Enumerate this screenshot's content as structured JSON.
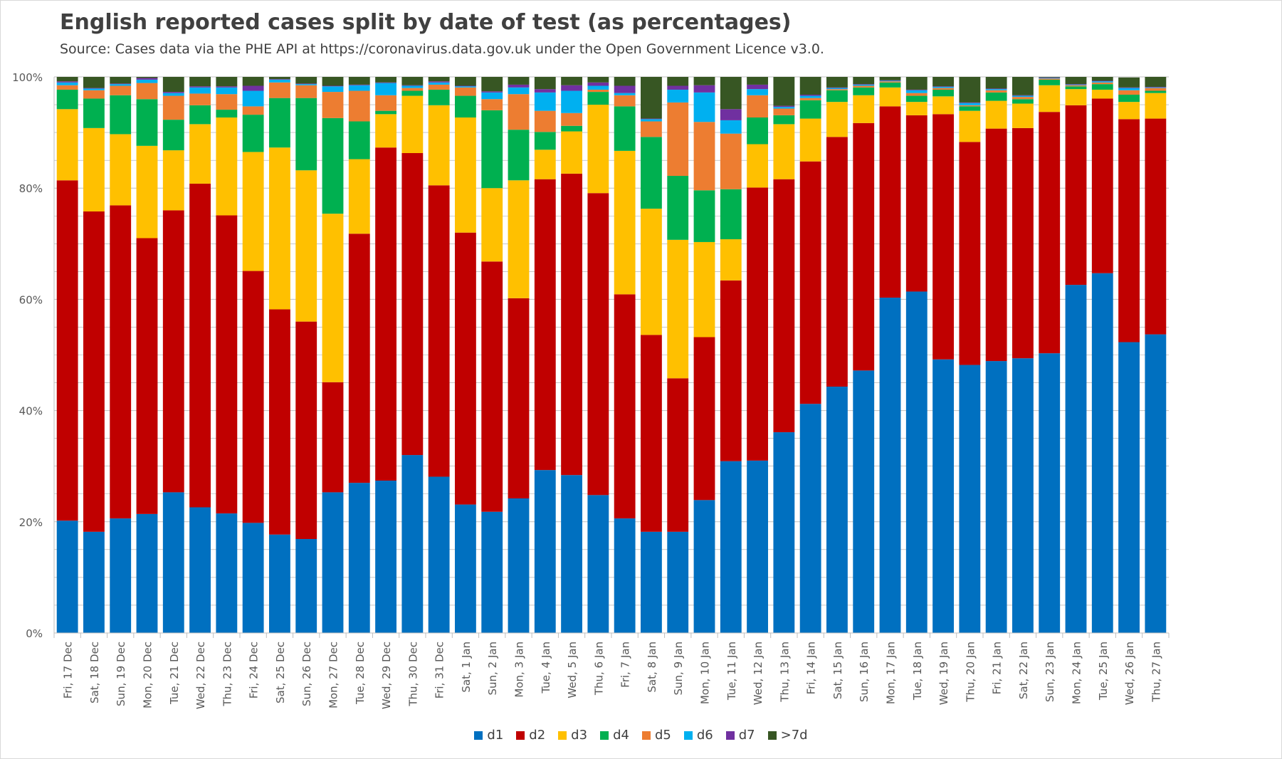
{
  "title": "English reported cases split by date of test (as percentages)",
  "subtitle": "Source: Cases data via the PHE API at https://coronavirus.data.gov.uk under the Open Government Licence v3.0.",
  "colors": {
    "d1": "#0070c0",
    "d2": "#c00000",
    "d3": "#ffc000",
    "d4": "#00b050",
    "d5": "#ed7d31",
    "d6": "#00b0f0",
    "d7": "#7030a0",
    ">7d": "#375623"
  },
  "chart_data": {
    "type": "bar",
    "stacked": true,
    "grid": true,
    "legend": "bottom",
    "ylim": [
      0,
      100
    ],
    "yticks": [
      "0%",
      "20%",
      "40%",
      "60%",
      "80%",
      "100%"
    ],
    "categories": [
      "Fri, 17 Dec",
      "Sat, 18 Dec",
      "Sun, 19 Dec",
      "Mon, 20 Dec",
      "Tue, 21 Dec",
      "Wed, 22 Dec",
      "Thu, 23 Dec",
      "Fri, 24 Dec",
      "Sat, 25 Dec",
      "Sun, 26 Dec",
      "Mon, 27 Dec",
      "Tue, 28 Dec",
      "Wed, 29 Dec",
      "Thu, 30 Dec",
      "Fri, 31 Dec",
      "Sat, 1 Jan",
      "Sun, 2 Jan",
      "Mon, 3 Jan",
      "Tue, 4 Jan",
      "Wed, 5 Jan",
      "Thu, 6 Jan",
      "Fri, 7 Jan",
      "Sat, 8 Jan",
      "Sun, 9 Jan",
      "Mon, 10 Jan",
      "Tue, 11 Jan",
      "Wed, 12 Jan",
      "Thu, 13 Jan",
      "Fri, 14 Jan",
      "Sat, 15 Jan",
      "Sun, 16 Jan",
      "Mon, 17 Jan",
      "Tue, 18 Jan",
      "Wed, 19 Jan",
      "Thu, 20 Jan",
      "Fri, 21 Jan",
      "Sat, 22 Jan",
      "Sun, 23 Jan",
      "Mon, 24 Jan",
      "Tue, 25 Jan",
      "Wed, 26 Jan",
      "Thu, 27 Jan"
    ],
    "series": [
      {
        "name": "d1",
        "values": [
          20.2,
          18.2,
          20.6,
          21.4,
          25.3,
          22.6,
          21.5,
          19.8,
          17.7,
          16.9,
          25.3,
          27.0,
          27.4,
          32.0,
          28.1,
          23.1,
          21.8,
          24.2,
          29.3,
          28.4,
          24.8,
          20.6,
          18.2,
          18.2,
          23.9,
          30.9,
          31.0,
          36.1,
          41.2,
          44.3,
          47.2,
          60.3,
          61.4,
          49.2,
          48.2,
          48.9,
          49.4,
          50.3,
          62.6,
          64.7,
          52.3,
          53.7
        ]
      },
      {
        "name": "d2",
        "values": [
          61.2,
          57.6,
          56.3,
          49.6,
          50.7,
          58.2,
          53.6,
          45.3,
          40.5,
          39.1,
          19.8,
          44.8,
          59.9,
          54.3,
          52.4,
          48.9,
          45.0,
          36.0,
          52.3,
          54.2,
          54.3,
          40.3,
          35.4,
          27.6,
          29.3,
          32.5,
          49.1,
          45.5,
          43.6,
          44.9,
          44.5,
          34.4,
          31.7,
          44.1,
          40.1,
          41.8,
          41.4,
          43.4,
          32.3,
          31.4,
          40.1,
          38.8
        ]
      },
      {
        "name": "d3",
        "values": [
          12.8,
          15.0,
          12.8,
          16.6,
          10.8,
          10.7,
          17.6,
          21.4,
          29.1,
          27.2,
          30.3,
          13.4,
          6.0,
          10.3,
          14.4,
          20.7,
          13.2,
          21.2,
          5.3,
          7.6,
          15.9,
          25.8,
          22.7,
          24.9,
          17.1,
          7.4,
          7.8,
          9.9,
          7.7,
          6.3,
          5.0,
          3.4,
          2.4,
          3.2,
          5.6,
          5.0,
          4.4,
          4.8,
          2.9,
          1.6,
          3.1,
          4.6
        ]
      },
      {
        "name": "d4",
        "values": [
          3.5,
          5.3,
          7.0,
          8.4,
          5.5,
          3.4,
          1.4,
          6.7,
          8.9,
          13.0,
          17.2,
          6.8,
          0.6,
          0.9,
          2.8,
          3.9,
          14.0,
          9.1,
          3.2,
          1.0,
          2.3,
          8.0,
          12.9,
          11.5,
          9.3,
          9.0,
          4.8,
          1.6,
          3.3,
          2.1,
          1.4,
          0.9,
          1.1,
          1.2,
          0.8,
          1.5,
          0.8,
          1.0,
          0.5,
          1.0,
          1.3,
          0.4
        ]
      },
      {
        "name": "d5",
        "values": [
          0.8,
          1.5,
          1.7,
          2.9,
          4.3,
          2.1,
          2.8,
          1.5,
          2.8,
          2.3,
          4.7,
          5.5,
          2.8,
          0.5,
          0.9,
          1.5,
          2.0,
          6.4,
          3.8,
          2.3,
          0.4,
          2.0,
          2.8,
          13.2,
          12.3,
          10.0,
          4.0,
          1.2,
          0.4,
          0.2,
          0.3,
          0.2,
          0.5,
          0.3,
          0.2,
          0.4,
          0.4,
          0.2,
          0.2,
          0.3,
          0.8,
          0.5
        ]
      },
      {
        "name": "d6",
        "values": [
          0.5,
          0.3,
          0.3,
          0.6,
          0.5,
          1.1,
          1.2,
          2.8,
          0.5,
          0.2,
          1.0,
          1.0,
          2.2,
          0.4,
          0.4,
          0.2,
          1.2,
          1.2,
          3.3,
          4.0,
          0.7,
          0.4,
          0.4,
          2.3,
          5.3,
          2.4,
          1.1,
          0.3,
          0.4,
          0.2,
          0.2,
          0.1,
          0.5,
          0.2,
          0.4,
          0.2,
          0.2,
          0.1,
          0.1,
          0.2,
          0.4,
          0.1
        ]
      },
      {
        "name": "d7",
        "values": [
          0.2,
          0.1,
          0.1,
          0.3,
          0.2,
          0.2,
          0.2,
          0.9,
          0.1,
          0.1,
          0.1,
          0.1,
          0.1,
          0.1,
          0.2,
          0.1,
          0.2,
          0.5,
          0.6,
          1.0,
          0.6,
          1.3,
          0.1,
          0.7,
          1.3,
          2.0,
          0.8,
          0.2,
          0.2,
          0.1,
          0.1,
          0.1,
          0.1,
          0.1,
          0.1,
          0.1,
          0.1,
          0.1,
          0.1,
          0.1,
          0.1,
          0.1
        ]
      },
      {
        "name": ">7d",
        "values": [
          0.8,
          2.0,
          1.2,
          0.2,
          2.7,
          1.7,
          1.7,
          1.6,
          0.4,
          1.2,
          1.6,
          1.4,
          1.0,
          1.5,
          0.8,
          1.6,
          2.6,
          1.4,
          2.2,
          1.5,
          1.0,
          1.6,
          7.5,
          1.6,
          1.5,
          5.8,
          1.4,
          5.2,
          3.2,
          1.9,
          1.3,
          0.6,
          2.3,
          1.7,
          4.6,
          2.1,
          3.3,
          0.1,
          1.3,
          0.7,
          1.8,
          1.8
        ]
      }
    ]
  }
}
